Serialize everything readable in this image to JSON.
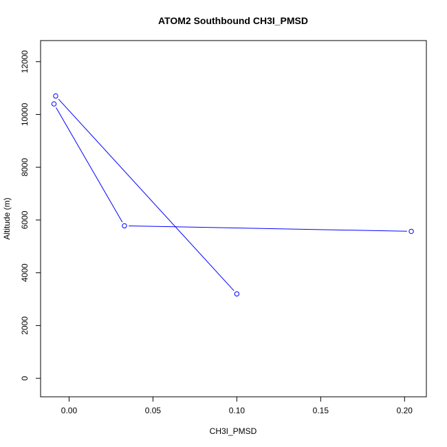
{
  "chart_data": {
    "type": "line",
    "title": "ATOM2 Southbound CH3I_PMSD",
    "xlabel": "CH3I_PMSD",
    "ylabel": "Altitude (m)",
    "xlim": [
      -0.017,
      0.213
    ],
    "ylim": [
      -700,
      12800
    ],
    "xticks": [
      0.0,
      0.05,
      0.1,
      0.15,
      0.2
    ],
    "xtick_labels": [
      "0.00",
      "0.05",
      "0.10",
      "0.15",
      "0.20"
    ],
    "yticks": [
      0,
      2000,
      4000,
      6000,
      8000,
      10000,
      12000
    ],
    "ytick_labels": [
      "0",
      "2000",
      "4000",
      "6000",
      "8000",
      "10000",
      "12000"
    ],
    "grid": false,
    "series": [
      {
        "color": "#0000ff",
        "marker": "open-circle",
        "points": [
          {
            "x": 0.1,
            "y": 3200
          },
          {
            "x": -0.008,
            "y": 10700
          },
          {
            "x": -0.009,
            "y": 10400
          },
          {
            "x": 0.033,
            "y": 5780
          },
          {
            "x": 0.204,
            "y": 5570
          }
        ]
      }
    ]
  }
}
